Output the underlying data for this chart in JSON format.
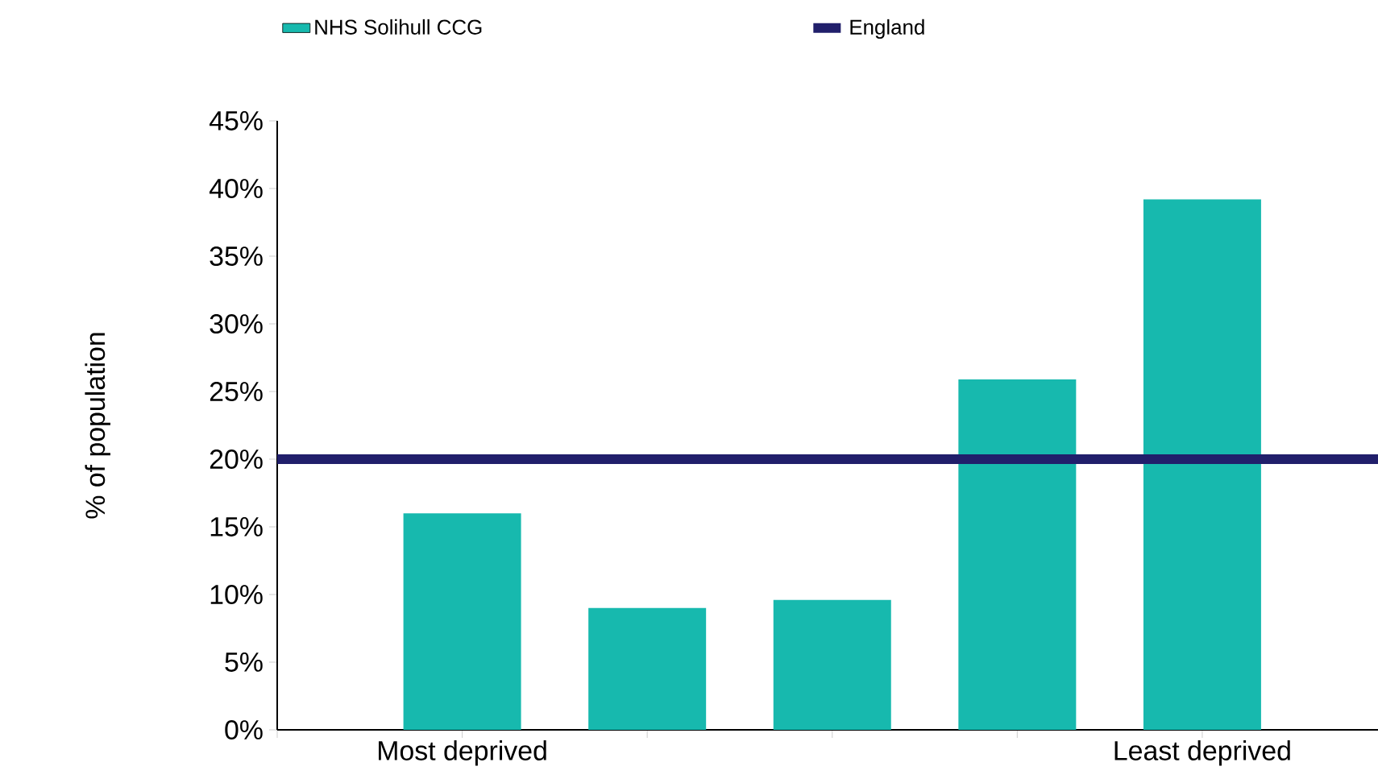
{
  "chart_data": {
    "type": "bar",
    "categories": [
      "Most deprived",
      null,
      null,
      null,
      "Least deprived"
    ],
    "series": [
      {
        "name": "NHS Solihull CCG",
        "color": "#17b9ae",
        "values": [
          16,
          9,
          9.6,
          25.9,
          39.2
        ]
      }
    ],
    "ylabel": "% of population",
    "ylim": [
      0,
      45
    ],
    "yticks": [
      {
        "value": 0,
        "label": "0%"
      },
      {
        "value": 5,
        "label": "5%"
      },
      {
        "value": 10,
        "label": "10%"
      },
      {
        "value": 15,
        "label": "15%"
      },
      {
        "value": 20,
        "label": "20%"
      },
      {
        "value": 25,
        "label": "25%"
      },
      {
        "value": 30,
        "label": "30%"
      },
      {
        "value": 35,
        "label": "35%"
      },
      {
        "value": 40,
        "label": "40%"
      },
      {
        "value": 45,
        "label": "45%"
      }
    ],
    "ref_lines": [
      {
        "axis": "y",
        "value": 20,
        "label": "England",
        "color": "#211f6b"
      }
    ],
    "grid": false,
    "legend": "top"
  }
}
